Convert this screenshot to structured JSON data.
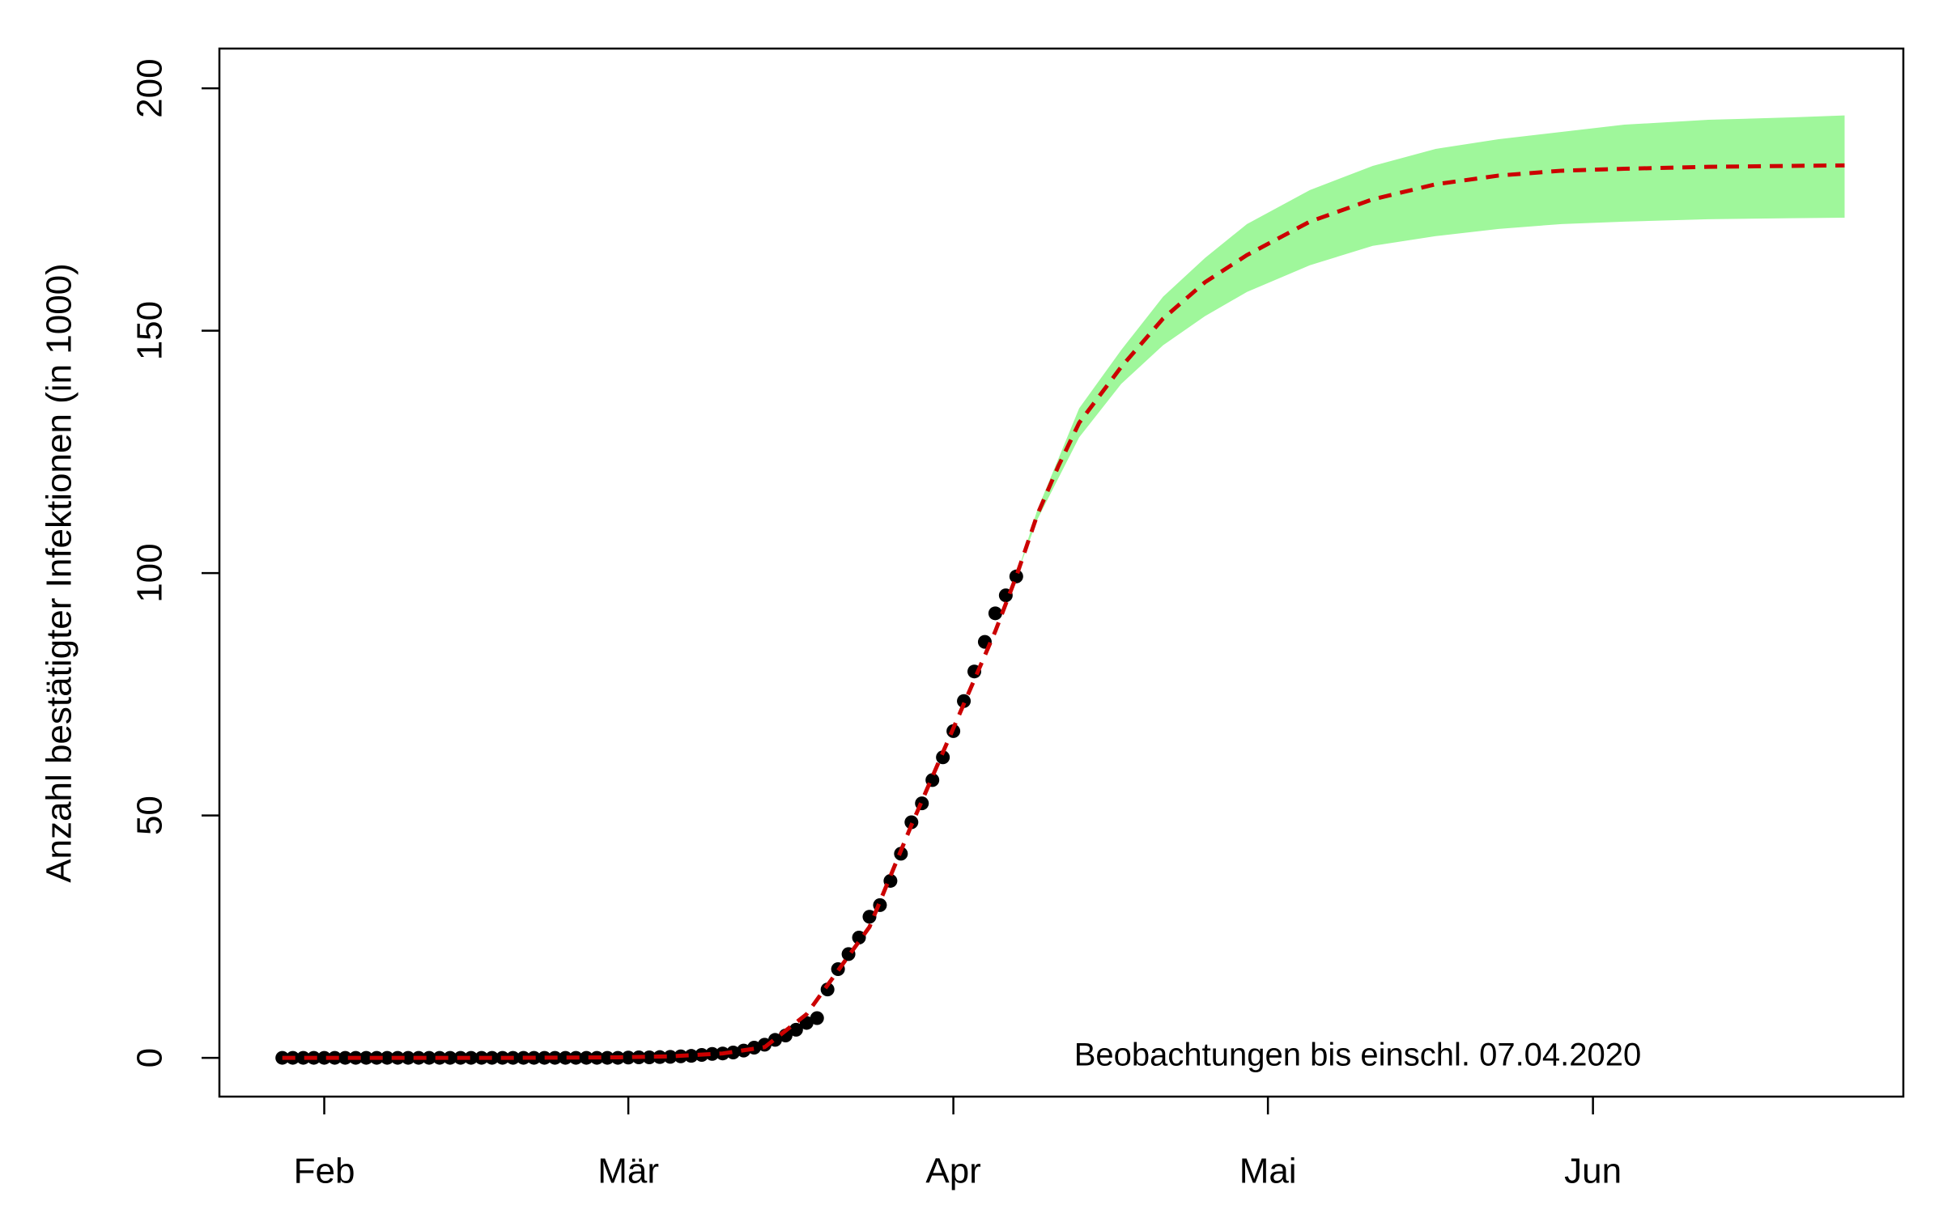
{
  "chart_data": {
    "type": "scatter",
    "y_label": "Anzahl bestätigter Infektionen (in 1000)",
    "annotation": "Beobachtungen bis einschl. 07.04.2020",
    "x": [
      28,
      29,
      30,
      31,
      32,
      33,
      34,
      35,
      36,
      37,
      38,
      39,
      40,
      41,
      42,
      43,
      44,
      45,
      46,
      47,
      48,
      49,
      50,
      51,
      52,
      53,
      54,
      55,
      56,
      57,
      58,
      59,
      60,
      61,
      62,
      63,
      64,
      65,
      66,
      67,
      68,
      69,
      70,
      71,
      72,
      73,
      74,
      75,
      76,
      77,
      78,
      79,
      80,
      81,
      82,
      83,
      84,
      85,
      86,
      87,
      88,
      89,
      90,
      91,
      92,
      93,
      94,
      95,
      96,
      97,
      98
    ],
    "values": [
      0,
      0,
      0,
      0,
      0,
      0,
      0,
      0,
      0,
      0,
      0,
      0,
      0,
      0,
      0,
      0,
      0,
      0,
      0,
      0,
      0,
      0,
      0,
      0,
      0,
      0,
      0,
      0,
      0,
      0,
      0,
      0,
      0,
      0.05,
      0.1,
      0.1,
      0.15,
      0.2,
      0.3,
      0.4,
      0.6,
      0.8,
      0.9,
      1.1,
      1.5,
      2.1,
      2.7,
      3.7,
      4.6,
      5.8,
      7.2,
      8.2,
      14.1,
      18.3,
      21.4,
      24.8,
      29.1,
      31.5,
      36.5,
      42.1,
      48.6,
      52.5,
      57.3,
      62.0,
      67.4,
      73.6,
      79.7,
      85.8,
      91.7,
      95.4,
      99.3
    ],
    "color": "#000000",
    "fit": {
      "x": [
        28,
        40,
        50,
        60,
        65,
        70,
        74,
        78,
        80,
        84,
        88,
        92,
        96,
        98,
        100,
        102,
        104,
        108,
        112,
        116,
        120,
        126,
        132,
        138,
        144,
        150,
        156,
        164,
        172,
        177
      ],
      "values": [
        0,
        0,
        0,
        0.1,
        0.3,
        0.9,
        2.2,
        9,
        15,
        27,
        48,
        68,
        88,
        99.3,
        112,
        122,
        131,
        142.5,
        152.5,
        160,
        165.6,
        172.5,
        177.1,
        180.2,
        182,
        183,
        183.4,
        183.8,
        184,
        184.1
      ],
      "color": "#cc0000"
    },
    "band": {
      "x": [
        98,
        100,
        104,
        108,
        112,
        116,
        120,
        126,
        132,
        138,
        144,
        150,
        156,
        164,
        172,
        177
      ],
      "lower": [
        99.3,
        111,
        128,
        139,
        147,
        153,
        158,
        163.5,
        167.5,
        169.5,
        171,
        172,
        172.5,
        173,
        173.2,
        173.3
      ],
      "upper": [
        99.3,
        113,
        134,
        146,
        157,
        165,
        172,
        179,
        184,
        187.5,
        189.5,
        191,
        192.5,
        193.5,
        194,
        194.4
      ],
      "color": "#9ff79b"
    },
    "xlim": [
      22,
      182.6
    ],
    "ylim": [
      -8,
      208.2
    ],
    "xticks": [
      {
        "value": 32,
        "label": "Feb"
      },
      {
        "value": 61,
        "label": "Mär"
      },
      {
        "value": 92,
        "label": "Apr"
      },
      {
        "value": 122,
        "label": "Mai"
      },
      {
        "value": 153,
        "label": "Jun"
      }
    ],
    "yticks": [
      0,
      50,
      100,
      150,
      200
    ]
  }
}
